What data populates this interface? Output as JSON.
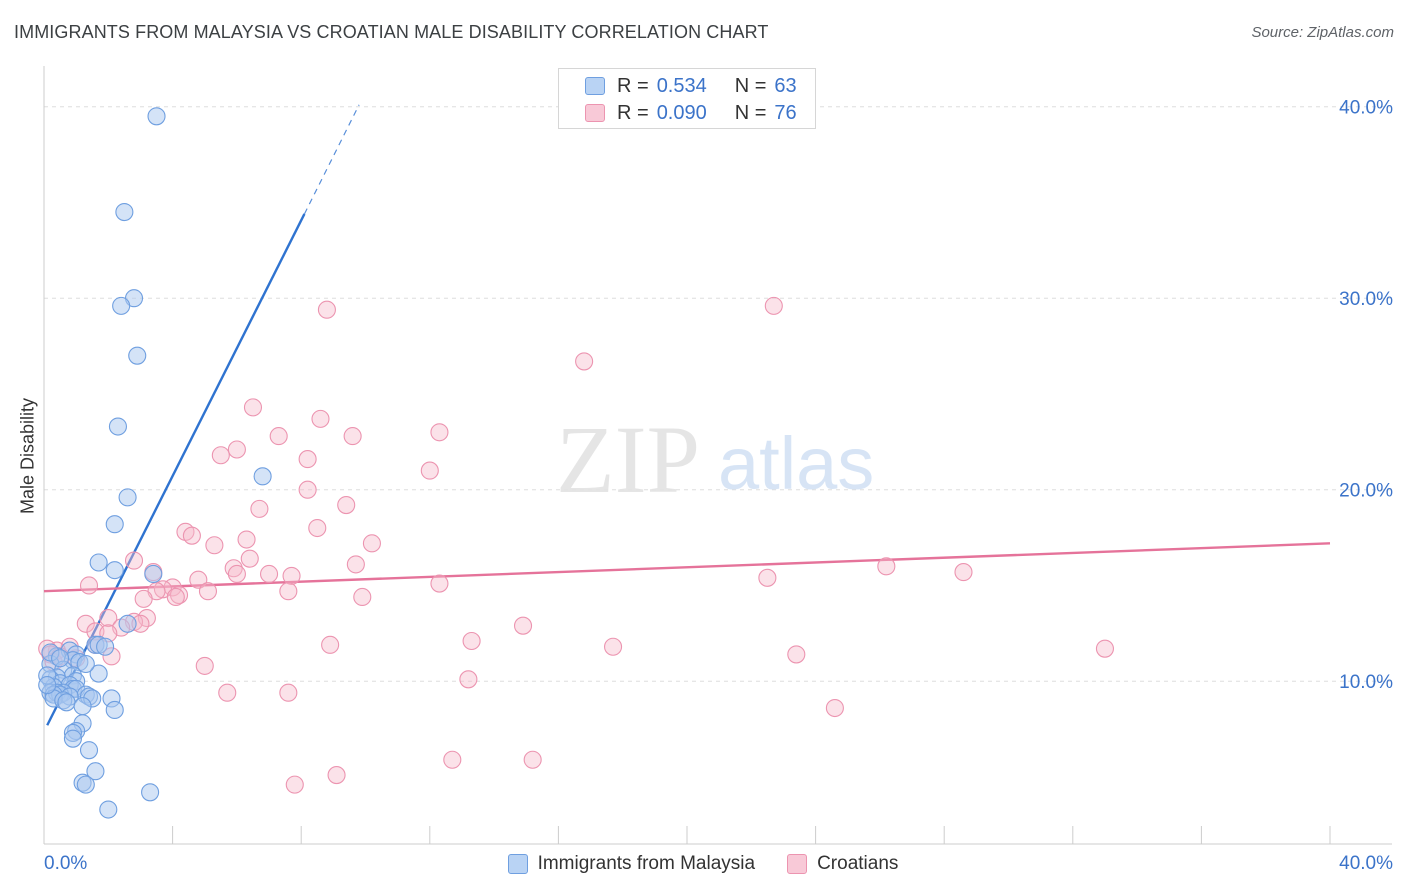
{
  "header": {
    "title": "IMMIGRANTS FROM MALAYSIA VS CROATIAN MALE DISABILITY CORRELATION CHART",
    "source": "Source: ZipAtlas.com"
  },
  "watermark": {
    "zip": "ZIP",
    "atlas": "atlas"
  },
  "legend_top": [
    {
      "r_label": "R =",
      "r_value": "0.534",
      "n_label": "N =",
      "n_value": "63"
    },
    {
      "r_label": "R =",
      "r_value": "0.090",
      "n_label": "N =",
      "n_value": "76"
    }
  ],
  "legend_bottom": [
    {
      "label": "Immigrants from Malaysia"
    },
    {
      "label": "Croatians"
    }
  ],
  "colors": {
    "blue_fill": "#a9c8f0",
    "blue_stroke": "#6f9fe0",
    "blue_line": "#2f73d0",
    "pink_fill": "#f5b9cb",
    "pink_stroke": "#ec94b0",
    "pink_line": "#e5739a",
    "tick_text": "#3b73c9",
    "grid": "#dddddd"
  },
  "chart_data": {
    "type": "scatter",
    "title": "IMMIGRANTS FROM MALAYSIA VS CROATIAN MALE DISABILITY CORRELATION CHART",
    "xlabel": "",
    "ylabel": "Male Disability",
    "xlim": [
      0,
      40
    ],
    "ylim": [
      1.5,
      41.5
    ],
    "x_tick_labels": [
      "0.0%",
      "40.0%"
    ],
    "y_ticks": [
      10,
      20,
      30,
      40
    ],
    "y_tick_labels": [
      "10.0%",
      "20.0%",
      "30.0%",
      "40.0%"
    ],
    "series": [
      {
        "name": "Immigrants from Malaysia",
        "r": 0.534,
        "n": 63,
        "trend": {
          "x0": 0.1,
          "y0": 7.7,
          "x1": 8.1,
          "y1": 34.4,
          "dash_to_x": 9.8,
          "dash_to_y": 40.1
        },
        "points": [
          [
            3.5,
            39.5
          ],
          [
            2.5,
            34.5
          ],
          [
            2.8,
            30.0
          ],
          [
            2.4,
            29.6
          ],
          [
            2.9,
            27.0
          ],
          [
            2.3,
            23.3
          ],
          [
            6.8,
            20.7
          ],
          [
            2.6,
            19.6
          ],
          [
            2.2,
            18.2
          ],
          [
            1.7,
            16.2
          ],
          [
            2.2,
            15.8
          ],
          [
            3.4,
            15.6
          ],
          [
            2.6,
            13.0
          ],
          [
            1.6,
            11.9
          ],
          [
            1.7,
            11.9
          ],
          [
            0.8,
            11.6
          ],
          [
            1.0,
            11.4
          ],
          [
            0.4,
            11.3
          ],
          [
            0.9,
            11.1
          ],
          [
            1.1,
            11.0
          ],
          [
            0.2,
            10.9
          ],
          [
            0.6,
            10.6
          ],
          [
            1.7,
            10.4
          ],
          [
            0.9,
            10.3
          ],
          [
            0.4,
            10.2
          ],
          [
            0.2,
            10.1
          ],
          [
            1.0,
            10.0
          ],
          [
            0.5,
            9.9
          ],
          [
            0.8,
            9.8
          ],
          [
            0.3,
            9.7
          ],
          [
            0.9,
            9.6
          ],
          [
            1.0,
            9.6
          ],
          [
            0.2,
            9.4
          ],
          [
            0.6,
            9.4
          ],
          [
            0.4,
            9.4
          ],
          [
            0.5,
            9.3
          ],
          [
            0.3,
            9.3
          ],
          [
            1.3,
            9.3
          ],
          [
            1.4,
            9.2
          ],
          [
            0.8,
            9.2
          ],
          [
            0.3,
            9.1
          ],
          [
            0.6,
            9.0
          ],
          [
            1.5,
            9.1
          ],
          [
            0.7,
            8.9
          ],
          [
            2.1,
            9.1
          ],
          [
            2.2,
            8.5
          ],
          [
            1.2,
            8.7
          ],
          [
            1.2,
            7.8
          ],
          [
            1.0,
            7.4
          ],
          [
            0.9,
            7.3
          ],
          [
            0.9,
            7.0
          ],
          [
            1.4,
            6.4
          ],
          [
            1.6,
            5.3
          ],
          [
            1.2,
            4.7
          ],
          [
            1.3,
            4.6
          ],
          [
            3.3,
            4.2
          ],
          [
            2.0,
            3.3
          ],
          [
            0.1,
            10.3
          ],
          [
            0.1,
            9.8
          ],
          [
            0.2,
            11.5
          ],
          [
            1.3,
            10.9
          ],
          [
            0.5,
            11.2
          ],
          [
            1.9,
            11.8
          ]
        ]
      },
      {
        "name": "Croatians",
        "r": 0.09,
        "n": 76,
        "trend": {
          "x0": 0.0,
          "y0": 14.7,
          "x1": 40.0,
          "y1": 17.2
        },
        "points": [
          [
            22.7,
            29.6
          ],
          [
            8.8,
            29.4
          ],
          [
            16.8,
            26.7
          ],
          [
            6.5,
            24.3
          ],
          [
            8.6,
            23.7
          ],
          [
            12.3,
            23.0
          ],
          [
            7.3,
            22.8
          ],
          [
            9.6,
            22.8
          ],
          [
            6.0,
            22.1
          ],
          [
            5.5,
            21.8
          ],
          [
            8.2,
            21.6
          ],
          [
            12.0,
            21.0
          ],
          [
            8.2,
            20.0
          ],
          [
            9.4,
            19.2
          ],
          [
            6.7,
            19.0
          ],
          [
            8.5,
            18.0
          ],
          [
            4.4,
            17.8
          ],
          [
            4.6,
            17.6
          ],
          [
            6.3,
            17.4
          ],
          [
            10.2,
            17.2
          ],
          [
            5.3,
            17.1
          ],
          [
            6.4,
            16.4
          ],
          [
            2.8,
            16.3
          ],
          [
            9.7,
            16.1
          ],
          [
            26.2,
            16.0
          ],
          [
            5.9,
            15.9
          ],
          [
            28.6,
            15.7
          ],
          [
            3.4,
            15.7
          ],
          [
            7.0,
            15.6
          ],
          [
            6.0,
            15.6
          ],
          [
            7.7,
            15.5
          ],
          [
            22.5,
            15.4
          ],
          [
            4.8,
            15.3
          ],
          [
            12.3,
            15.1
          ],
          [
            1.4,
            15.0
          ],
          [
            4.0,
            14.9
          ],
          [
            3.7,
            14.8
          ],
          [
            7.6,
            14.7
          ],
          [
            5.1,
            14.7
          ],
          [
            3.5,
            14.7
          ],
          [
            4.2,
            14.5
          ],
          [
            3.1,
            14.3
          ],
          [
            9.9,
            14.4
          ],
          [
            4.1,
            14.4
          ],
          [
            2.0,
            13.3
          ],
          [
            3.2,
            13.3
          ],
          [
            2.8,
            13.1
          ],
          [
            1.3,
            13.0
          ],
          [
            3.0,
            13.0
          ],
          [
            14.9,
            12.9
          ],
          [
            1.6,
            12.6
          ],
          [
            2.4,
            12.8
          ],
          [
            2.0,
            12.5
          ],
          [
            13.3,
            12.1
          ],
          [
            8.9,
            11.9
          ],
          [
            17.7,
            11.8
          ],
          [
            33.0,
            11.7
          ],
          [
            1.6,
            11.9
          ],
          [
            0.8,
            11.8
          ],
          [
            0.4,
            11.6
          ],
          [
            23.4,
            11.4
          ],
          [
            2.1,
            11.3
          ],
          [
            1.0,
            11.2
          ],
          [
            5.0,
            10.8
          ],
          [
            13.2,
            10.1
          ],
          [
            7.6,
            9.4
          ],
          [
            5.7,
            9.4
          ],
          [
            24.6,
            8.6
          ],
          [
            12.7,
            5.9
          ],
          [
            15.2,
            5.9
          ],
          [
            9.1,
            5.1
          ],
          [
            7.8,
            4.6
          ],
          [
            0.1,
            11.7
          ],
          [
            0.2,
            11.4
          ],
          [
            0.3,
            11.0
          ],
          [
            0.5,
            11.3
          ]
        ]
      }
    ]
  }
}
